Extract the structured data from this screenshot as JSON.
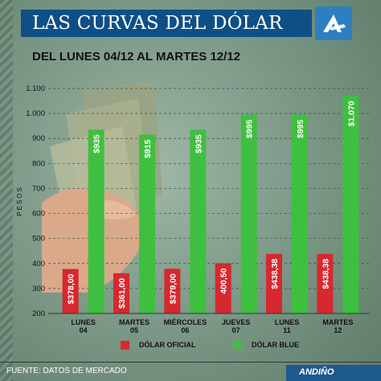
{
  "header": {
    "title": "LAS CURVAS DEL DÓLAR",
    "subtitle": "DEL LUNES 04/12 AL MARTES 12/12",
    "logo_icon": "andino-a-logo-icon"
  },
  "footer": {
    "source": "FUENTE: DATOS DE MERCADO",
    "brand": "ANDIÑO"
  },
  "colors": {
    "oficial": "#d7282f",
    "blue": "#3fbf3f",
    "title_bar": "#0e4f86"
  },
  "chart_data": {
    "type": "bar",
    "ylabel": "PESOS",
    "ylim": [
      200,
      1100
    ],
    "yticks": [
      "200",
      "300",
      "400",
      "500",
      "600",
      "700",
      "800",
      "900",
      "1.000",
      "1.100"
    ],
    "ytick_values": [
      200,
      300,
      400,
      500,
      600,
      700,
      800,
      900,
      1000,
      1100
    ],
    "categories": [
      [
        "LUNES",
        "04"
      ],
      [
        "MARTES",
        "05"
      ],
      [
        "MIÉRCOLES",
        "06"
      ],
      [
        "JUEVES",
        "07"
      ],
      [
        "LUNES",
        "11"
      ],
      [
        "MARTES",
        "12"
      ]
    ],
    "series": [
      {
        "name": "DÓLAR OFICIAL",
        "values": [
          378.0,
          361.0,
          379.0,
          400.5,
          438.38,
          438.38
        ],
        "labels": [
          "$378,00",
          "$361,00",
          "$379,00",
          "400,50",
          "$438,38",
          "$438,38"
        ]
      },
      {
        "name": "DÓLAR BLUE",
        "values": [
          935,
          915,
          935,
          995,
          995,
          1070
        ],
        "labels": [
          "$935",
          "$915",
          "$935",
          "$995",
          "$995",
          "$1.070"
        ]
      }
    ],
    "legend_position": "bottom"
  }
}
